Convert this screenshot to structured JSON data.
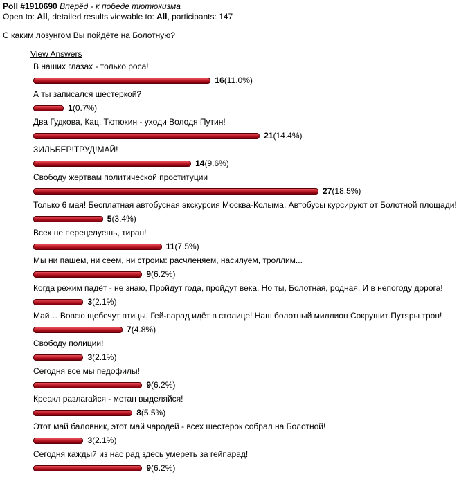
{
  "header": {
    "poll_link": "Poll #1910690",
    "title": "Вперёд - к победе тютюкизма"
  },
  "access": {
    "open_label": "Open to: ",
    "open_value": "All",
    "detail_label": ", detailed results viewable to: ",
    "detail_value": "All",
    "participants_label": ", participants: ",
    "participants": 147
  },
  "question": "С каким лозунгом Вы пойдёте на Болотную?",
  "view_answers": "View Answers",
  "answers": [
    {
      "text": "В наших глазах - только роса!",
      "count": 16,
      "percent": "(11.0%)"
    },
    {
      "text": "А ты записался шестеркой?",
      "count": 1,
      "percent": "(0.7%)"
    },
    {
      "text": "Два Гудкова, Кац, Тютюкин - уходи Володя Путин!",
      "count": 21,
      "percent": "(14.4%)"
    },
    {
      "text": "ЗИЛЬБЕР!ТРУД!МАЙ!",
      "count": 14,
      "percent": "(9.6%)"
    },
    {
      "text": "Свободу жертвам политической проституции",
      "count": 27,
      "percent": "(18.5%)"
    },
    {
      "text": "Только 6 мая! Бесплатная автобусная экскурсия Москва-Колыма. Автобусы курсируют от Болотной площади!",
      "count": 5,
      "percent": "(3.4%)"
    },
    {
      "text": "Всех не перецелуешь, тиран!",
      "count": 11,
      "percent": "(7.5%)"
    },
    {
      "text": "Мы ни пашем, ни сеем, ни строим: расчленяем, насилуем, троллим...",
      "count": 9,
      "percent": "(6.2%)"
    },
    {
      "text": "Когда режим падёт - не знаю, Пройдут года, пройдут века, Но ты, Болотная, родная, И в непогоду дорога!",
      "count": 3,
      "percent": "(2.1%)"
    },
    {
      "text": "Май… Вовсю щебечут птицы, Гей-парад идёт в столице! Наш болотный миллион Сокрушит Путяры трон!",
      "count": 7,
      "percent": "(4.8%)"
    },
    {
      "text": "Свободу полиции!",
      "count": 3,
      "percent": "(2.1%)"
    },
    {
      "text": "Сегодня все мы педофилы!",
      "count": 9,
      "percent": "(6.2%)"
    },
    {
      "text": "Креакл разлагайся - метан выделяйся!",
      "count": 8,
      "percent": "(5.5%)"
    },
    {
      "text": "Этот май баловник, этот май чародей - всех шестерок собрал на Болотной!",
      "count": 3,
      "percent": "(2.1%)"
    },
    {
      "text": "Сегодня каждый из нас рад здесь умереть за гейпарад!",
      "count": 9,
      "percent": "(6.2%)"
    }
  ]
}
